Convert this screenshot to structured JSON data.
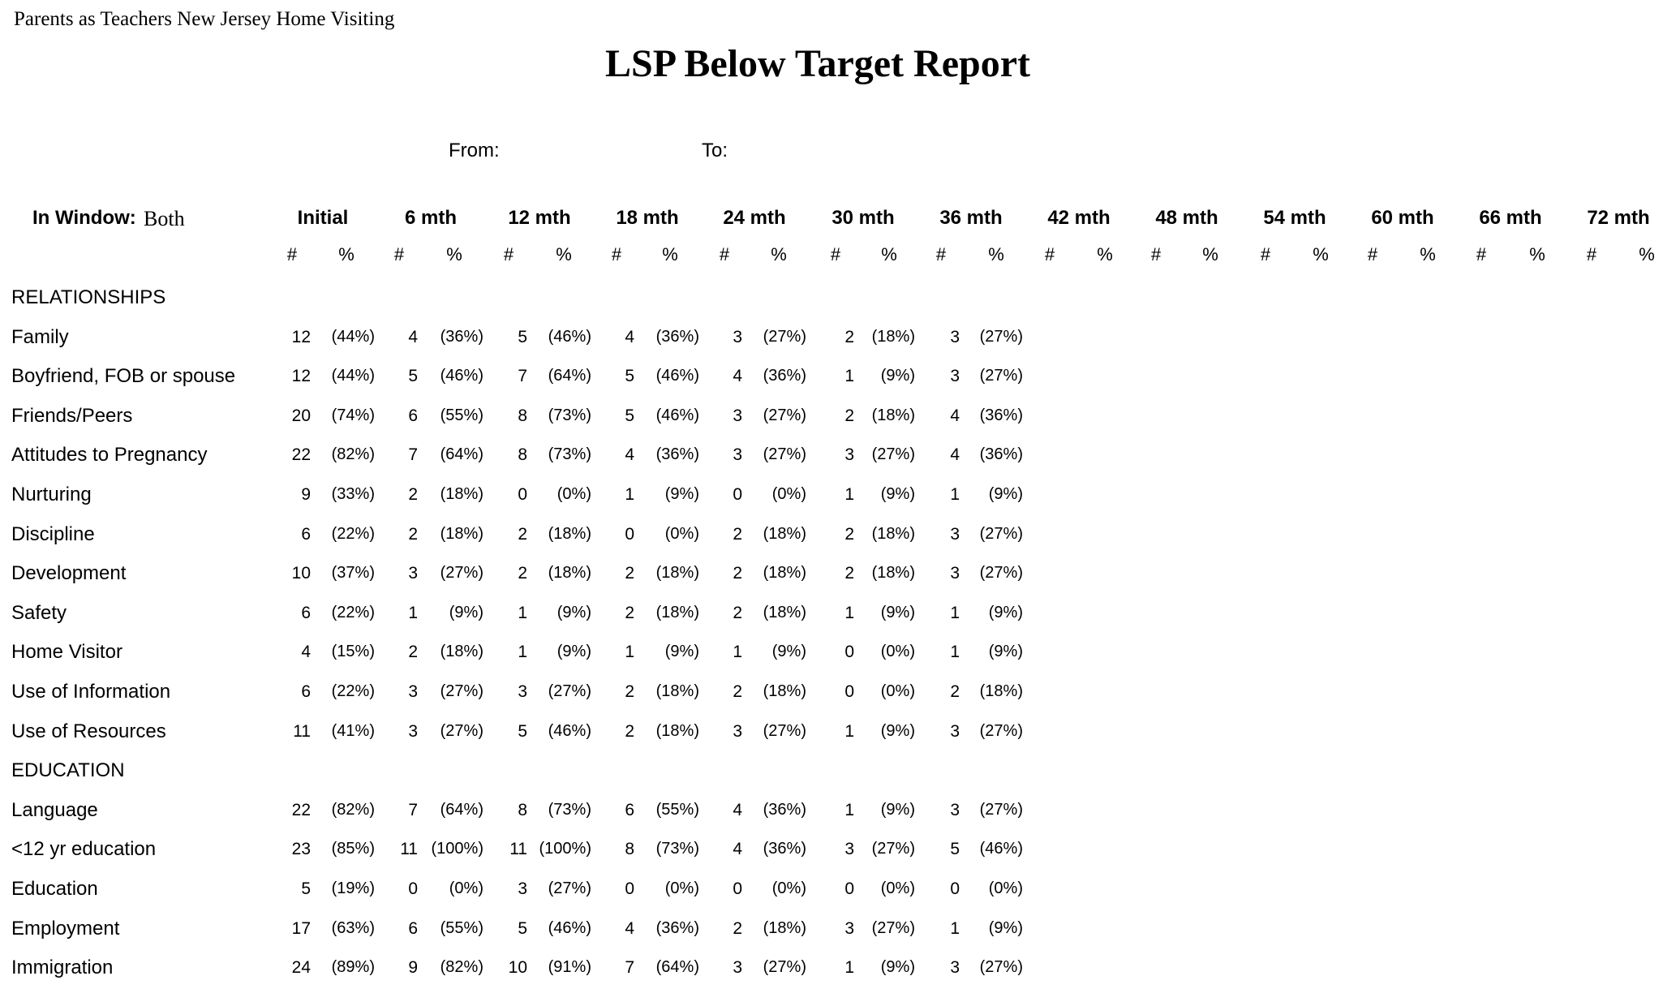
{
  "organization": "Parents as Teachers New Jersey Home Visiting",
  "report_title": "LSP Below Target Report",
  "from_label": "From:",
  "to_label": "To:",
  "window_label": "In Window:",
  "window_value": "Both",
  "periods": [
    "Initial",
    "6 mth",
    "12 mth",
    "18 mth",
    "24 mth",
    "30 mth",
    "36 mth",
    "42 mth",
    "48 mth",
    "54 mth",
    "60 mth",
    "66 mth",
    "72 mth"
  ],
  "count_header": "#",
  "percent_header": "%",
  "rows": [
    {
      "type": "section",
      "label": "RELATIONSHIPS"
    },
    {
      "type": "item",
      "label": "Family",
      "values": [
        [
          "12",
          "(44%)"
        ],
        [
          "4",
          "(36%)"
        ],
        [
          "5",
          "(46%)"
        ],
        [
          "4",
          "(36%)"
        ],
        [
          "3",
          "(27%)"
        ],
        [
          "2",
          "(18%)"
        ],
        [
          "3",
          "(27%)"
        ]
      ]
    },
    {
      "type": "item",
      "label": "Boyfriend, FOB or spouse",
      "values": [
        [
          "12",
          "(44%)"
        ],
        [
          "5",
          "(46%)"
        ],
        [
          "7",
          "(64%)"
        ],
        [
          "5",
          "(46%)"
        ],
        [
          "4",
          "(36%)"
        ],
        [
          "1",
          "(9%)"
        ],
        [
          "3",
          "(27%)"
        ]
      ]
    },
    {
      "type": "item",
      "label": "Friends/Peers",
      "values": [
        [
          "20",
          "(74%)"
        ],
        [
          "6",
          "(55%)"
        ],
        [
          "8",
          "(73%)"
        ],
        [
          "5",
          "(46%)"
        ],
        [
          "3",
          "(27%)"
        ],
        [
          "2",
          "(18%)"
        ],
        [
          "4",
          "(36%)"
        ]
      ]
    },
    {
      "type": "item",
      "label": "Attitudes to Pregnancy",
      "values": [
        [
          "22",
          "(82%)"
        ],
        [
          "7",
          "(64%)"
        ],
        [
          "8",
          "(73%)"
        ],
        [
          "4",
          "(36%)"
        ],
        [
          "3",
          "(27%)"
        ],
        [
          "3",
          "(27%)"
        ],
        [
          "4",
          "(36%)"
        ]
      ]
    },
    {
      "type": "item",
      "label": "Nurturing",
      "values": [
        [
          "9",
          "(33%)"
        ],
        [
          "2",
          "(18%)"
        ],
        [
          "0",
          "(0%)"
        ],
        [
          "1",
          "(9%)"
        ],
        [
          "0",
          "(0%)"
        ],
        [
          "1",
          "(9%)"
        ],
        [
          "1",
          "(9%)"
        ]
      ]
    },
    {
      "type": "item",
      "label": "Discipline",
      "values": [
        [
          "6",
          "(22%)"
        ],
        [
          "2",
          "(18%)"
        ],
        [
          "2",
          "(18%)"
        ],
        [
          "0",
          "(0%)"
        ],
        [
          "2",
          "(18%)"
        ],
        [
          "2",
          "(18%)"
        ],
        [
          "3",
          "(27%)"
        ]
      ]
    },
    {
      "type": "item",
      "label": "Development",
      "values": [
        [
          "10",
          "(37%)"
        ],
        [
          "3",
          "(27%)"
        ],
        [
          "2",
          "(18%)"
        ],
        [
          "2",
          "(18%)"
        ],
        [
          "2",
          "(18%)"
        ],
        [
          "2",
          "(18%)"
        ],
        [
          "3",
          "(27%)"
        ]
      ]
    },
    {
      "type": "item",
      "label": "Safety",
      "values": [
        [
          "6",
          "(22%)"
        ],
        [
          "1",
          "(9%)"
        ],
        [
          "1",
          "(9%)"
        ],
        [
          "2",
          "(18%)"
        ],
        [
          "2",
          "(18%)"
        ],
        [
          "1",
          "(9%)"
        ],
        [
          "1",
          "(9%)"
        ]
      ]
    },
    {
      "type": "item",
      "label": "Home Visitor",
      "values": [
        [
          "4",
          "(15%)"
        ],
        [
          "2",
          "(18%)"
        ],
        [
          "1",
          "(9%)"
        ],
        [
          "1",
          "(9%)"
        ],
        [
          "1",
          "(9%)"
        ],
        [
          "0",
          "(0%)"
        ],
        [
          "1",
          "(9%)"
        ]
      ]
    },
    {
      "type": "item",
      "label": "Use of Information",
      "values": [
        [
          "6",
          "(22%)"
        ],
        [
          "3",
          "(27%)"
        ],
        [
          "3",
          "(27%)"
        ],
        [
          "2",
          "(18%)"
        ],
        [
          "2",
          "(18%)"
        ],
        [
          "0",
          "(0%)"
        ],
        [
          "2",
          "(18%)"
        ]
      ]
    },
    {
      "type": "item",
      "label": "Use of Resources",
      "values": [
        [
          "11",
          "(41%)"
        ],
        [
          "3",
          "(27%)"
        ],
        [
          "5",
          "(46%)"
        ],
        [
          "2",
          "(18%)"
        ],
        [
          "3",
          "(27%)"
        ],
        [
          "1",
          "(9%)"
        ],
        [
          "3",
          "(27%)"
        ]
      ]
    },
    {
      "type": "section",
      "label": "EDUCATION"
    },
    {
      "type": "item",
      "label": "Language",
      "values": [
        [
          "22",
          "(82%)"
        ],
        [
          "7",
          "(64%)"
        ],
        [
          "8",
          "(73%)"
        ],
        [
          "6",
          "(55%)"
        ],
        [
          "4",
          "(36%)"
        ],
        [
          "1",
          "(9%)"
        ],
        [
          "3",
          "(27%)"
        ]
      ]
    },
    {
      "type": "item",
      "label": "<12 yr education",
      "values": [
        [
          "23",
          "(85%)"
        ],
        [
          "11",
          "(100%)"
        ],
        [
          "11",
          "(100%)"
        ],
        [
          "8",
          "(73%)"
        ],
        [
          "4",
          "(36%)"
        ],
        [
          "3",
          "(27%)"
        ],
        [
          "5",
          "(46%)"
        ]
      ]
    },
    {
      "type": "item",
      "label": "Education",
      "values": [
        [
          "5",
          "(19%)"
        ],
        [
          "0",
          "(0%)"
        ],
        [
          "3",
          "(27%)"
        ],
        [
          "0",
          "(0%)"
        ],
        [
          "0",
          "(0%)"
        ],
        [
          "0",
          "(0%)"
        ],
        [
          "0",
          "(0%)"
        ]
      ]
    },
    {
      "type": "item",
      "label": "Employment",
      "values": [
        [
          "17",
          "(63%)"
        ],
        [
          "6",
          "(55%)"
        ],
        [
          "5",
          "(46%)"
        ],
        [
          "4",
          "(36%)"
        ],
        [
          "2",
          "(18%)"
        ],
        [
          "3",
          "(27%)"
        ],
        [
          "1",
          "(9%)"
        ]
      ]
    },
    {
      "type": "item",
      "label": "Immigration",
      "values": [
        [
          "24",
          "(89%)"
        ],
        [
          "9",
          "(82%)"
        ],
        [
          "10",
          "(91%)"
        ],
        [
          "7",
          "(64%)"
        ],
        [
          "3",
          "(27%)"
        ],
        [
          "1",
          "(9%)"
        ],
        [
          "3",
          "(27%)"
        ]
      ]
    }
  ]
}
